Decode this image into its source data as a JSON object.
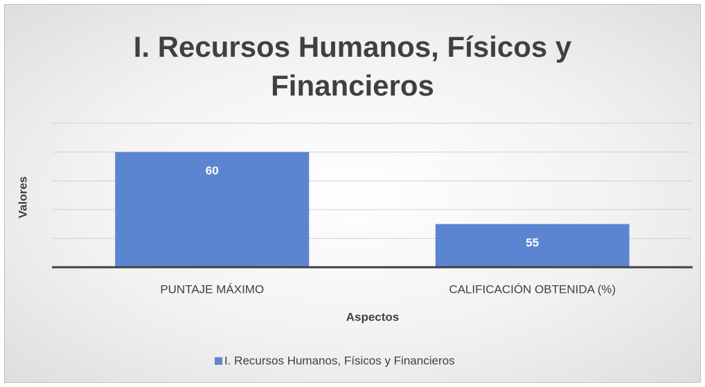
{
  "chart_data": {
    "type": "bar",
    "title": "I. Recursos Humanos, Físicos y Financieros",
    "x_label": "Aspectos",
    "y_label": "Valores",
    "categories": [
      "PUNTAJE MÁXIMO",
      "CALIFICACIÓN OBTENIDA (%)"
    ],
    "series": [
      {
        "name": "I. Recursos Humanos, Físicos y Financieros",
        "color": "#5b85d0",
        "values": [
          60,
          55
        ]
      }
    ],
    "ylim": [
      52,
      62
    ],
    "yticks": [
      52,
      54,
      56,
      58,
      60,
      62
    ],
    "grid": true,
    "legend": "bottom"
  }
}
